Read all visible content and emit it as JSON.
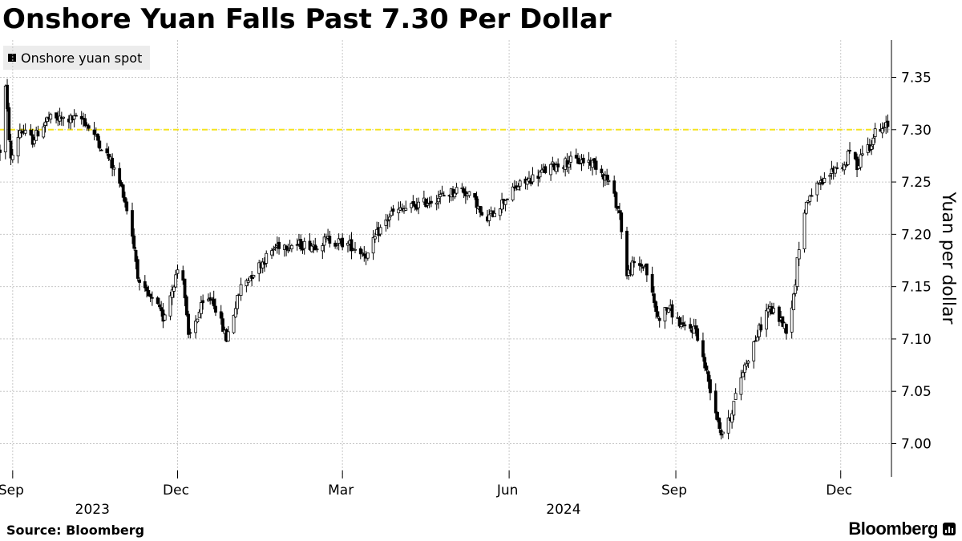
{
  "title": "Onshore Yuan Falls Past 7.30 Per Dollar",
  "source": "Source:  Bloomberg",
  "brand": "Bloomberg",
  "chart_data": {
    "type": "candlestick",
    "series": [
      {
        "name": "Onshore yuan spot",
        "color": "#000000"
      }
    ],
    "ylabel": "Yuan per dollar",
    "ylim": [
      6.965,
      7.385
    ],
    "yticks": [
      7.0,
      7.05,
      7.1,
      7.15,
      7.2,
      7.25,
      7.3,
      7.35
    ],
    "ytick_labels": [
      "7.00",
      "7.05",
      "7.10",
      "7.15",
      "7.20",
      "7.25",
      "7.30",
      "7.35"
    ],
    "reference_line": {
      "value": 7.3,
      "color": "#f5e31e",
      "style": "dashed"
    },
    "xlim": [
      "2023-08-25",
      "2024-12-29"
    ],
    "xticks": [
      {
        "date": "2023-09-01",
        "label": "Sep"
      },
      {
        "date": "2023-12-01",
        "label": "Dec"
      },
      {
        "date": "2024-03-01",
        "label": "Mar"
      },
      {
        "date": "2024-06-01",
        "label": "Jun"
      },
      {
        "date": "2024-09-01",
        "label": "Sep"
      },
      {
        "date": "2024-12-01",
        "label": "Dec"
      }
    ],
    "year_labels": [
      {
        "date": "2023-10-15",
        "label": "2023"
      },
      {
        "date": "2024-07-01",
        "label": "2024"
      }
    ],
    "anchors": [
      [
        "2023-08-25",
        7.28
      ],
      [
        "2023-08-28",
        7.34
      ],
      [
        "2023-08-31",
        7.27
      ],
      [
        "2023-09-05",
        7.3
      ],
      [
        "2023-09-12",
        7.29
      ],
      [
        "2023-09-20",
        7.31
      ],
      [
        "2023-10-10",
        7.31
      ],
      [
        "2023-10-18",
        7.29
      ],
      [
        "2023-10-25",
        7.27
      ],
      [
        "2023-11-01",
        7.24
      ],
      [
        "2023-11-06",
        7.2
      ],
      [
        "2023-11-10",
        7.15
      ],
      [
        "2023-11-15",
        7.14
      ],
      [
        "2023-11-20",
        7.13
      ],
      [
        "2023-11-23",
        7.12
      ],
      [
        "2023-11-30",
        7.16
      ],
      [
        "2023-12-03",
        7.18
      ],
      [
        "2023-12-07",
        7.1
      ],
      [
        "2023-12-14",
        7.13
      ],
      [
        "2023-12-20",
        7.14
      ],
      [
        "2023-12-28",
        7.1
      ],
      [
        "2024-01-05",
        7.15
      ],
      [
        "2024-01-15",
        7.17
      ],
      [
        "2024-01-25",
        7.19
      ],
      [
        "2024-02-05",
        7.19
      ],
      [
        "2024-02-15",
        7.19
      ],
      [
        "2024-02-22",
        7.195
      ],
      [
        "2024-03-05",
        7.19
      ],
      [
        "2024-03-15",
        7.18
      ],
      [
        "2024-03-20",
        7.2
      ],
      [
        "2024-03-28",
        7.22
      ],
      [
        "2024-04-15",
        7.23
      ],
      [
        "2024-04-30",
        7.24
      ],
      [
        "2024-05-05",
        7.245
      ],
      [
        "2024-05-14",
        7.23
      ],
      [
        "2024-05-18",
        7.21
      ],
      [
        "2024-05-25",
        7.225
      ],
      [
        "2024-06-05",
        7.245
      ],
      [
        "2024-06-15",
        7.255
      ],
      [
        "2024-06-25",
        7.265
      ],
      [
        "2024-07-05",
        7.27
      ],
      [
        "2024-07-15",
        7.27
      ],
      [
        "2024-07-20",
        7.265
      ],
      [
        "2024-07-26",
        7.25
      ],
      [
        "2024-08-01",
        7.22
      ],
      [
        "2024-08-05",
        7.16
      ],
      [
        "2024-08-08",
        7.17
      ],
      [
        "2024-08-15",
        7.17
      ],
      [
        "2024-08-22",
        7.12
      ],
      [
        "2024-08-28",
        7.13
      ],
      [
        "2024-09-05",
        7.11
      ],
      [
        "2024-09-12",
        7.11
      ],
      [
        "2024-09-19",
        7.06
      ],
      [
        "2024-09-26",
        7.01
      ],
      [
        "2024-09-30",
        7.02
      ],
      [
        "2024-10-08",
        7.07
      ],
      [
        "2024-10-15",
        7.1
      ],
      [
        "2024-10-22",
        7.13
      ],
      [
        "2024-10-28",
        7.12
      ],
      [
        "2024-11-01",
        7.11
      ],
      [
        "2024-11-05",
        7.14
      ],
      [
        "2024-11-08",
        7.19
      ],
      [
        "2024-11-12",
        7.23
      ],
      [
        "2024-11-15",
        7.24
      ],
      [
        "2024-11-22",
        7.25
      ],
      [
        "2024-11-26",
        7.26
      ],
      [
        "2024-11-29",
        7.265
      ],
      [
        "2024-12-03",
        7.265
      ],
      [
        "2024-12-06",
        7.28
      ],
      [
        "2024-12-10",
        7.265
      ],
      [
        "2024-12-13",
        7.28
      ],
      [
        "2024-12-17",
        7.285
      ],
      [
        "2024-12-20",
        7.297
      ],
      [
        "2024-12-24",
        7.299
      ],
      [
        "2024-12-27",
        7.305
      ]
    ]
  }
}
